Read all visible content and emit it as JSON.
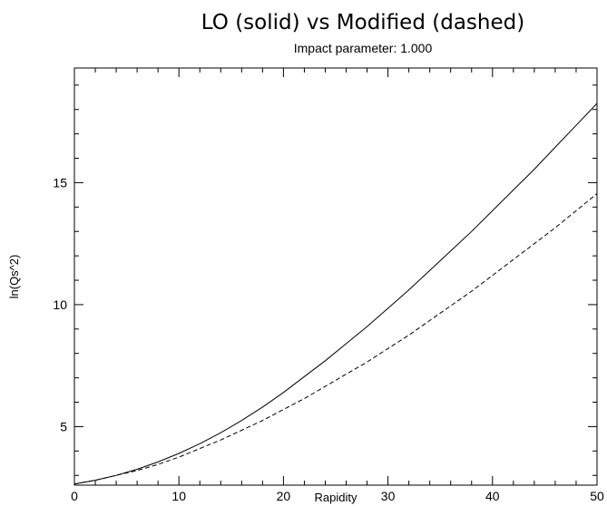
{
  "chart_data": {
    "type": "line",
    "title": "LO (solid) vs Modified (dashed)",
    "subtitle": "Impact parameter: 1.000",
    "xlabel": "Rapidity",
    "ylabel": "ln(Qs^2)",
    "xlim": [
      0,
      50
    ],
    "ylim": [
      2.6,
      19.7
    ],
    "xticks": [
      0,
      10,
      20,
      30,
      40,
      50
    ],
    "yticks": [
      5,
      10,
      15
    ],
    "grid": false,
    "series": [
      {
        "style": "solid",
        "x": [
          0,
          2,
          4,
          6,
          8,
          10,
          12,
          14,
          16,
          18,
          20,
          22,
          24,
          26,
          28,
          30,
          32,
          34,
          36,
          38,
          40,
          42,
          44,
          46,
          48,
          50
        ],
        "y": [
          2.65,
          2.8,
          3.0,
          3.25,
          3.55,
          3.9,
          4.3,
          4.75,
          5.25,
          5.8,
          6.4,
          7.05,
          7.7,
          8.4,
          9.1,
          9.85,
          10.6,
          11.4,
          12.2,
          13.0,
          13.85,
          14.7,
          15.55,
          16.45,
          17.35,
          18.25
        ]
      },
      {
        "style": "dashed",
        "x": [
          0,
          2,
          4,
          6,
          8,
          10,
          12,
          14,
          16,
          18,
          20,
          22,
          24,
          26,
          28,
          30,
          32,
          34,
          36,
          38,
          40,
          42,
          44,
          46,
          48,
          50
        ],
        "y": [
          2.65,
          2.8,
          3.0,
          3.2,
          3.45,
          3.75,
          4.1,
          4.45,
          4.85,
          5.25,
          5.7,
          6.15,
          6.65,
          7.15,
          7.65,
          8.2,
          8.75,
          9.35,
          9.95,
          10.55,
          11.2,
          11.85,
          12.5,
          13.15,
          13.85,
          14.55
        ]
      }
    ]
  }
}
